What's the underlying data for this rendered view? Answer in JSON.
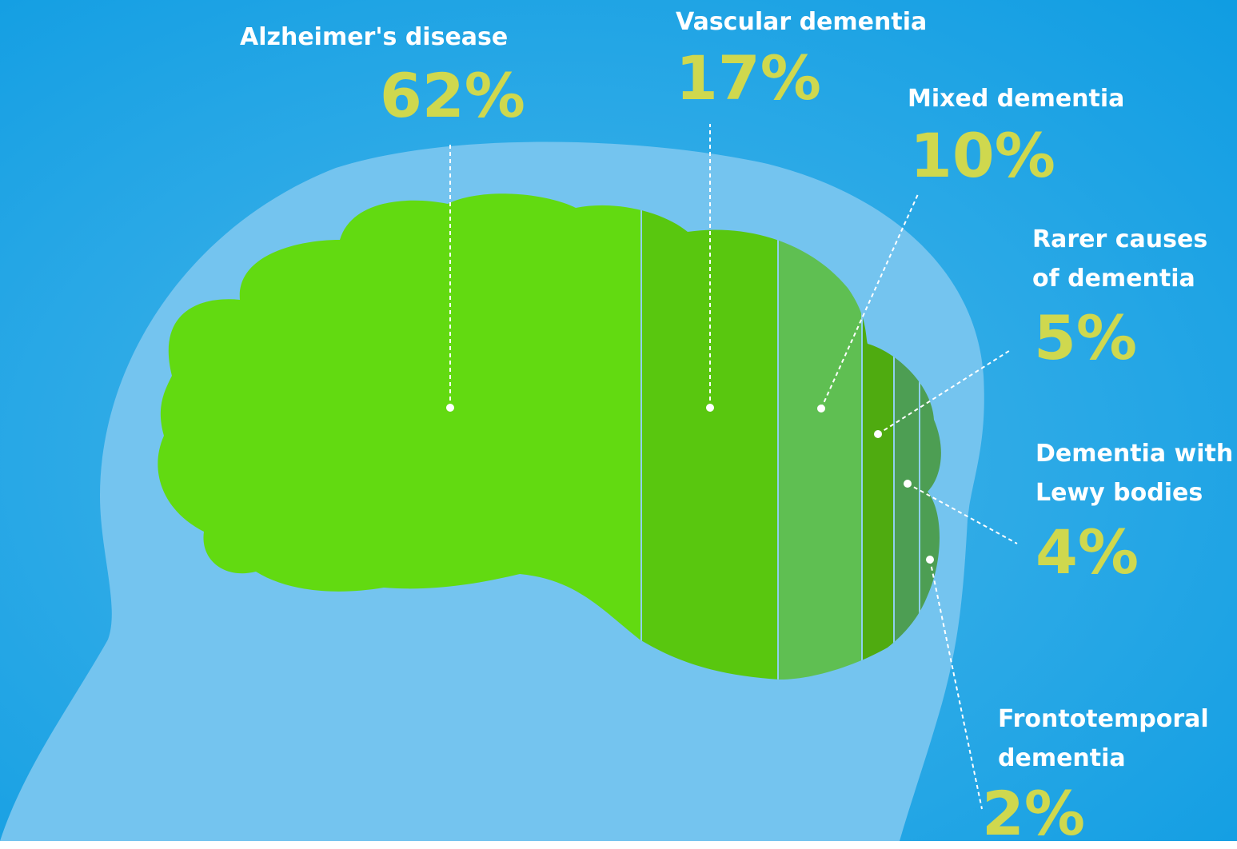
{
  "colors": {
    "background": "#1ea3e3",
    "head": "#74c4ef",
    "label": "#ffffff",
    "percent": "#cfd84e",
    "leader": "#ffffff"
  },
  "chart_data": {
    "type": "bar",
    "orientation": "horizontal-stacked-100",
    "title": "",
    "total": 100,
    "categories": [
      "Alzheimer's disease",
      "Vascular dementia",
      "Mixed dementia",
      "Rarer causes of dementia",
      "Dementia with Lewy bodies",
      "Frontotemporal dementia"
    ],
    "series": [
      {
        "values": [
          62,
          17,
          10,
          5,
          4,
          2
        ]
      }
    ],
    "segment_colors": [
      "#62da11",
      "#59c70f",
      "#5fbf52",
      "#4fab10",
      "#4d9e53",
      "#4d9e53"
    ],
    "labels": [
      {
        "lines": [
          "Alzheimer's disease"
        ],
        "value": "62%"
      },
      {
        "lines": [
          "Vascular dementia"
        ],
        "value": "17%"
      },
      {
        "lines": [
          "Mixed dementia"
        ],
        "value": "10%"
      },
      {
        "lines": [
          "Rarer causes",
          "of dementia"
        ],
        "value": "5%"
      },
      {
        "lines": [
          "Dementia with",
          "Lewy bodies"
        ],
        "value": "4%"
      },
      {
        "lines": [
          "Frontotemporal",
          "dementia"
        ],
        "value": "2%"
      }
    ],
    "icons": [
      "head-silhouette-icon",
      "brain-icon"
    ]
  }
}
